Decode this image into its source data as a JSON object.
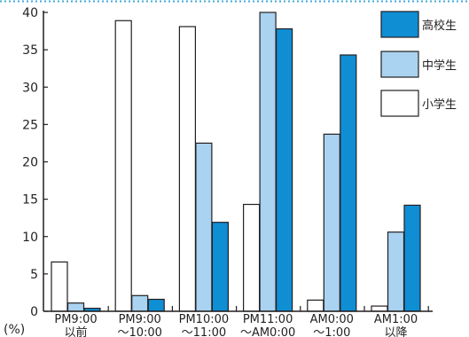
{
  "chart_data": {
    "type": "bar",
    "unit_label": "(%)",
    "ylim": [
      0,
      40
    ],
    "yticks": [
      "0",
      "5",
      "10",
      "15",
      "20",
      "25",
      "30",
      "35",
      "40"
    ],
    "categories": [
      [
        "PM9:00",
        "以前"
      ],
      [
        "PM9:00",
        "～10:00"
      ],
      [
        "PM10:00",
        "～11:00"
      ],
      [
        "PM11:00",
        "～AM0:00"
      ],
      [
        "AM0:00",
        "～1:00"
      ],
      [
        "AM1:00",
        "以降"
      ]
    ],
    "series": [
      {
        "name": "小学生",
        "color": "#ffffff",
        "values": [
          6.6,
          38.9,
          38.1,
          14.3,
          1.5,
          0.7
        ]
      },
      {
        "name": "中学生",
        "color": "#a9d3f0",
        "values": [
          1.1,
          2.1,
          22.5,
          40.0,
          23.7,
          10.6
        ]
      },
      {
        "name": "高校生",
        "color": "#0f8ed4",
        "values": [
          0.4,
          1.6,
          11.9,
          37.8,
          34.3,
          14.2
        ]
      }
    ],
    "legend_order": [
      "高校生",
      "中学生",
      "小学生"
    ],
    "grid": false,
    "legend_position": "top-right"
  }
}
